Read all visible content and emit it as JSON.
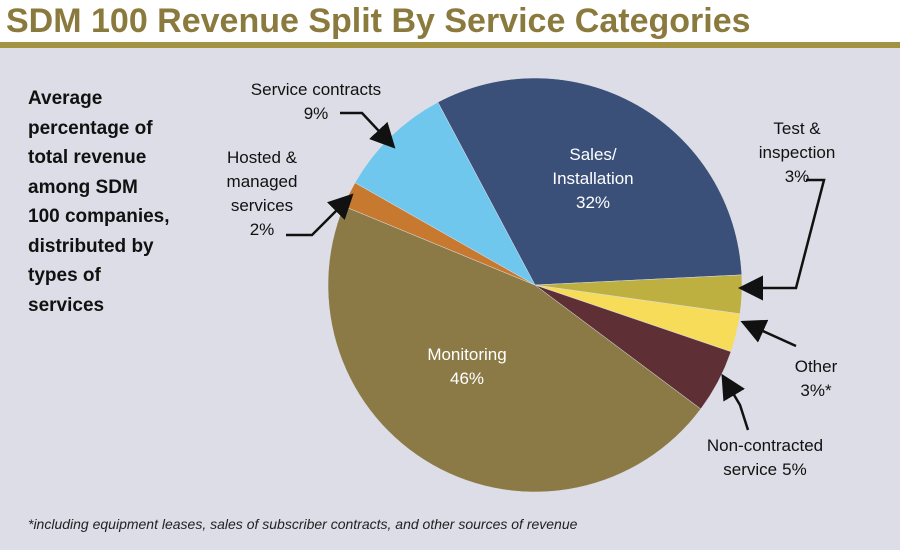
{
  "chart_data": {
    "type": "pie",
    "title": "SDM 100 Revenue Split By Service Categories",
    "subtitle": "Average percentage of total revenue among SDM 100 companies, distributed by types of services",
    "categories": [
      "Sales/ Installation",
      "Test & inspection",
      "Other",
      "Non-contracted service",
      "Monitoring",
      "Hosted & managed services",
      "Service contracts"
    ],
    "values": [
      32,
      3,
      3,
      5,
      46,
      2,
      9
    ],
    "value_labels": [
      "32%",
      "3%",
      "3%*",
      "5%",
      "46%",
      "2%",
      "9%"
    ],
    "colors": [
      "#3b5079",
      "#bdb040",
      "#f6dc58",
      "#5f2f36",
      "#8c7a46",
      "#c77a2f",
      "#70c7ee"
    ],
    "footnote": "*including equipment leases, sales of subscriber contracts, and other sources of revenue"
  }
}
